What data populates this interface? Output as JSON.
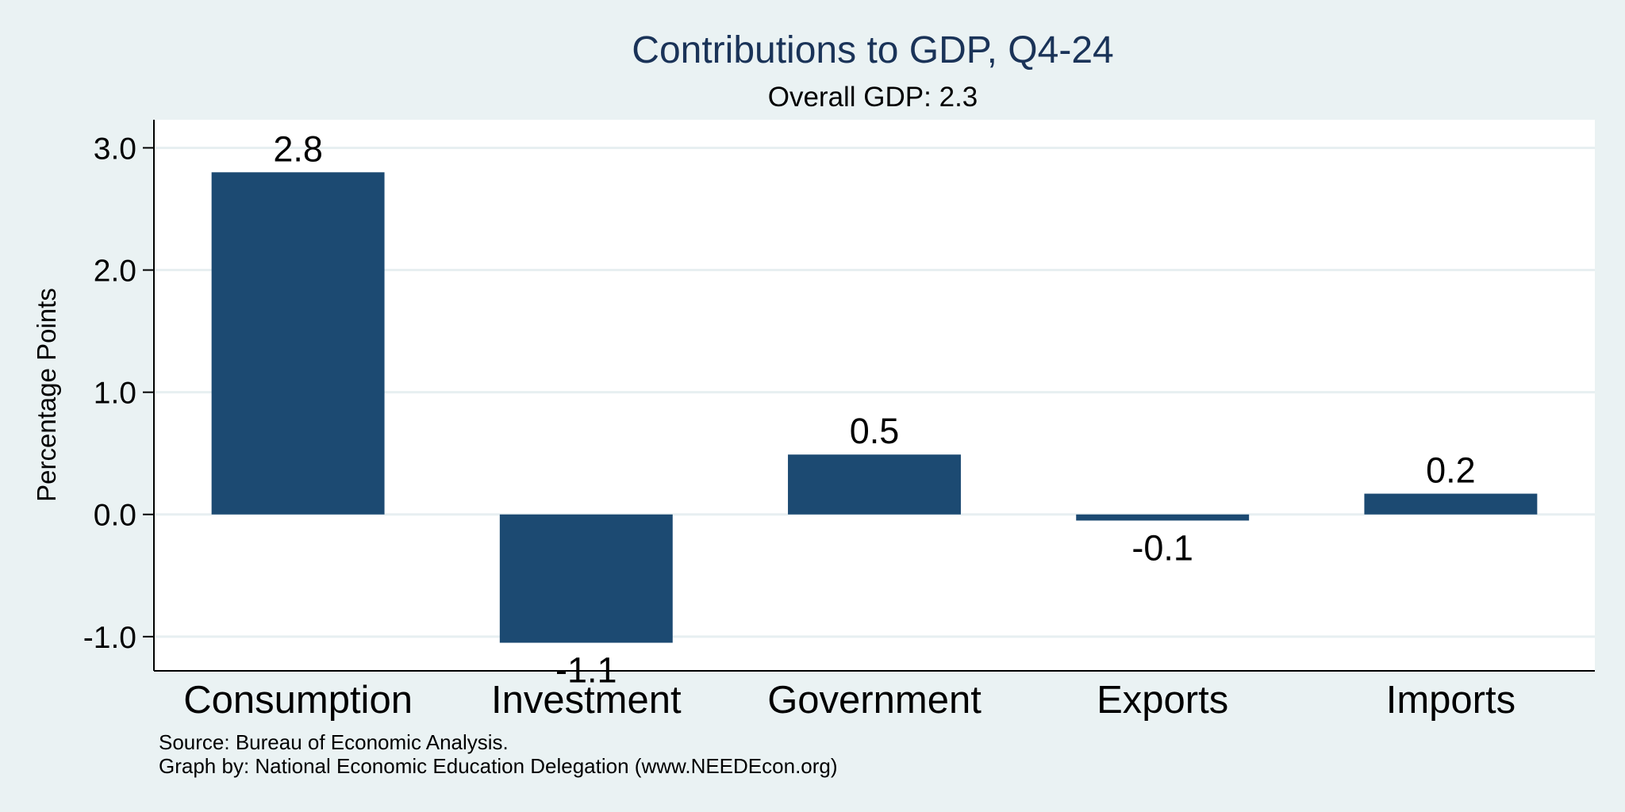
{
  "chart_data": {
    "type": "bar",
    "title": "Contributions to GDP, Q4-24",
    "subtitle": "Overall GDP: 2.3",
    "xlabel": "",
    "ylabel": "Percentage Points",
    "categories": [
      "Consumption",
      "Investment",
      "Government",
      "Exports",
      "Imports"
    ],
    "values": [
      2.8,
      -1.05,
      0.49,
      -0.05,
      0.17
    ],
    "value_labels": [
      "2.8",
      "-1.1",
      "0.5",
      "-0.1",
      "0.2"
    ],
    "yticks": [
      -1.0,
      0.0,
      1.0,
      2.0,
      3.0
    ],
    "ytick_labels": [
      "-1.0",
      "0.0",
      "1.0",
      "2.0",
      "3.0"
    ],
    "ylim": [
      -1.28,
      3.23
    ],
    "grid": true,
    "bar_color": "#1c4a72",
    "notes": [
      "Source: Bureau of Economic Analysis.",
      "Graph by: National Economic Education Delegation (www.NEEDEcon.org)"
    ]
  }
}
